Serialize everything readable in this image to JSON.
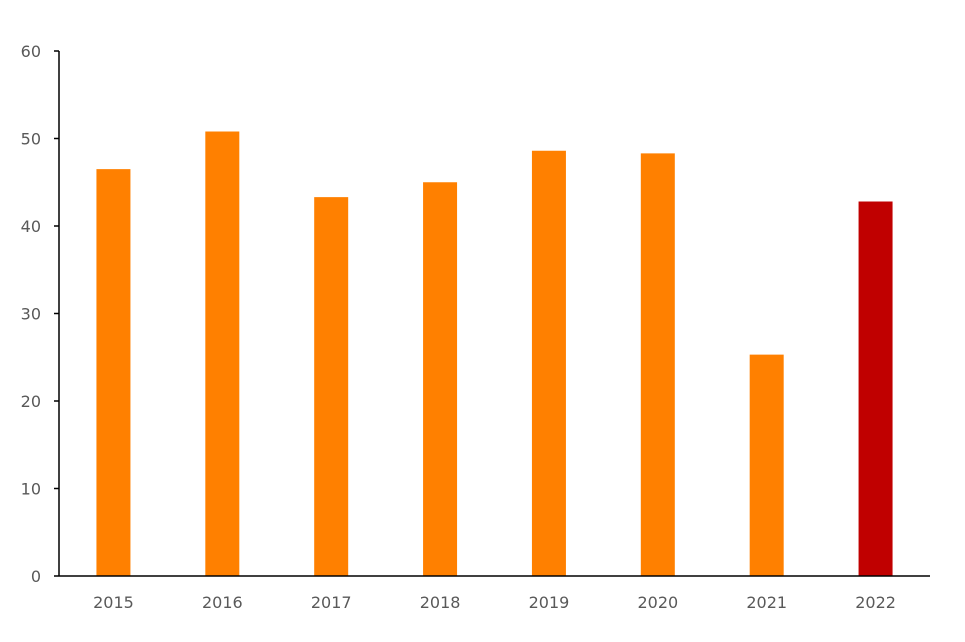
{
  "chart_data": {
    "type": "bar",
    "title": "",
    "xlabel": "",
    "ylabel": "",
    "categories": [
      "2015",
      "2016",
      "2017",
      "2018",
      "2019",
      "2020",
      "2021",
      "2022"
    ],
    "values": [
      46.5,
      50.8,
      43.3,
      45.0,
      48.6,
      48.3,
      25.3,
      42.8
    ],
    "bar_colors": [
      "#ff8000",
      "#ff8000",
      "#ff8000",
      "#ff8000",
      "#ff8000",
      "#ff8000",
      "#ff8000",
      "#c00000"
    ],
    "ylim": [
      0,
      60
    ],
    "y_ticks": [
      "0",
      "10",
      "20",
      "30",
      "40",
      "50",
      "60"
    ],
    "grid": false,
    "legend": "none"
  }
}
